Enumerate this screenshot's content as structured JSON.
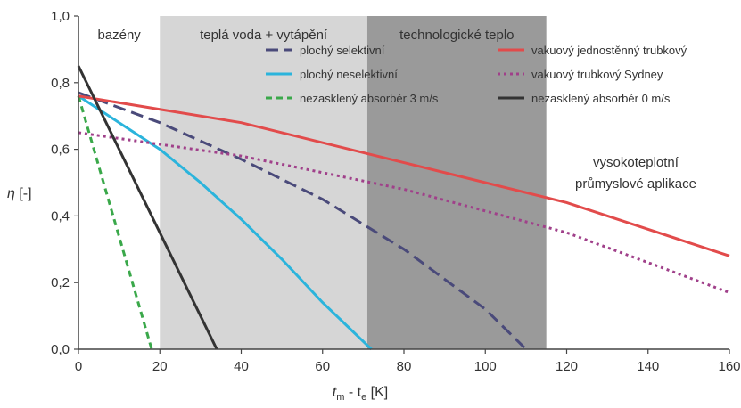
{
  "chart_data": {
    "type": "line",
    "xlabel_main": "t",
    "xlabel_sub1": "m",
    "xlabel_sep": " - t",
    "xlabel_sub2": "e",
    "xlabel_unit": " [K]",
    "ylabel_main": "η",
    "ylabel_unit": " [-]",
    "xlim": [
      0,
      160
    ],
    "ylim": [
      0,
      1.0
    ],
    "x_ticks": [
      "0",
      "20",
      "40",
      "60",
      "80",
      "100",
      "120",
      "140",
      "160"
    ],
    "y_ticks": [
      "0,0",
      "0,2",
      "0,4",
      "0,6",
      "0,8",
      "1,0"
    ],
    "grid": false,
    "legend_position": "top-center",
    "zones": [
      {
        "label": "bazény",
        "x0": 0,
        "x1": 20,
        "color": "#ffffff",
        "text_color": "#333333"
      },
      {
        "label": "teplá voda + vytápění",
        "x0": 20,
        "x1": 71,
        "color": "#d6d6d6",
        "text_color": "#ffffff"
      },
      {
        "label": "technologické teplo",
        "x0": 71,
        "x1": 115,
        "color": "#9a9a9a",
        "text_color": "#ffffff"
      }
    ],
    "annotation": {
      "line1": "vysokoteplotní",
      "line2": "průmyslové aplikace"
    },
    "series": [
      {
        "name": "plochý selektivní",
        "color": "#4a4a7a",
        "dash": "14,7",
        "points": [
          [
            0,
            0.77
          ],
          [
            20,
            0.68
          ],
          [
            40,
            0.57
          ],
          [
            60,
            0.45
          ],
          [
            80,
            0.3
          ],
          [
            100,
            0.12
          ],
          [
            110,
            0.0
          ]
        ]
      },
      {
        "name": "plochý neselektivní",
        "color": "#2bb4dc",
        "dash": "",
        "points": [
          [
            0,
            0.76
          ],
          [
            10,
            0.68
          ],
          [
            20,
            0.6
          ],
          [
            30,
            0.5
          ],
          [
            40,
            0.39
          ],
          [
            50,
            0.27
          ],
          [
            60,
            0.14
          ],
          [
            72,
            0.0
          ]
        ]
      },
      {
        "name": "nezasklený absorbér 3 m/s",
        "color": "#3aa84a",
        "dash": "7,5",
        "points": [
          [
            0,
            0.76
          ],
          [
            18,
            0.0
          ]
        ]
      },
      {
        "name": "vakuový jednostěnný trubkový",
        "color": "#e24b4b",
        "dash": "",
        "points": [
          [
            0,
            0.76
          ],
          [
            40,
            0.68
          ],
          [
            80,
            0.56
          ],
          [
            120,
            0.44
          ],
          [
            160,
            0.28
          ]
        ]
      },
      {
        "name": "vakuový trubkový Sydney",
        "color": "#a0408a",
        "dash": "3,4",
        "points": [
          [
            0,
            0.65
          ],
          [
            40,
            0.58
          ],
          [
            80,
            0.48
          ],
          [
            120,
            0.35
          ],
          [
            160,
            0.17
          ]
        ]
      },
      {
        "name": "nezasklený absorbér 0 m/s",
        "color": "#333333",
        "dash": "",
        "points": [
          [
            0,
            0.85
          ],
          [
            34,
            0.0
          ]
        ]
      }
    ]
  }
}
